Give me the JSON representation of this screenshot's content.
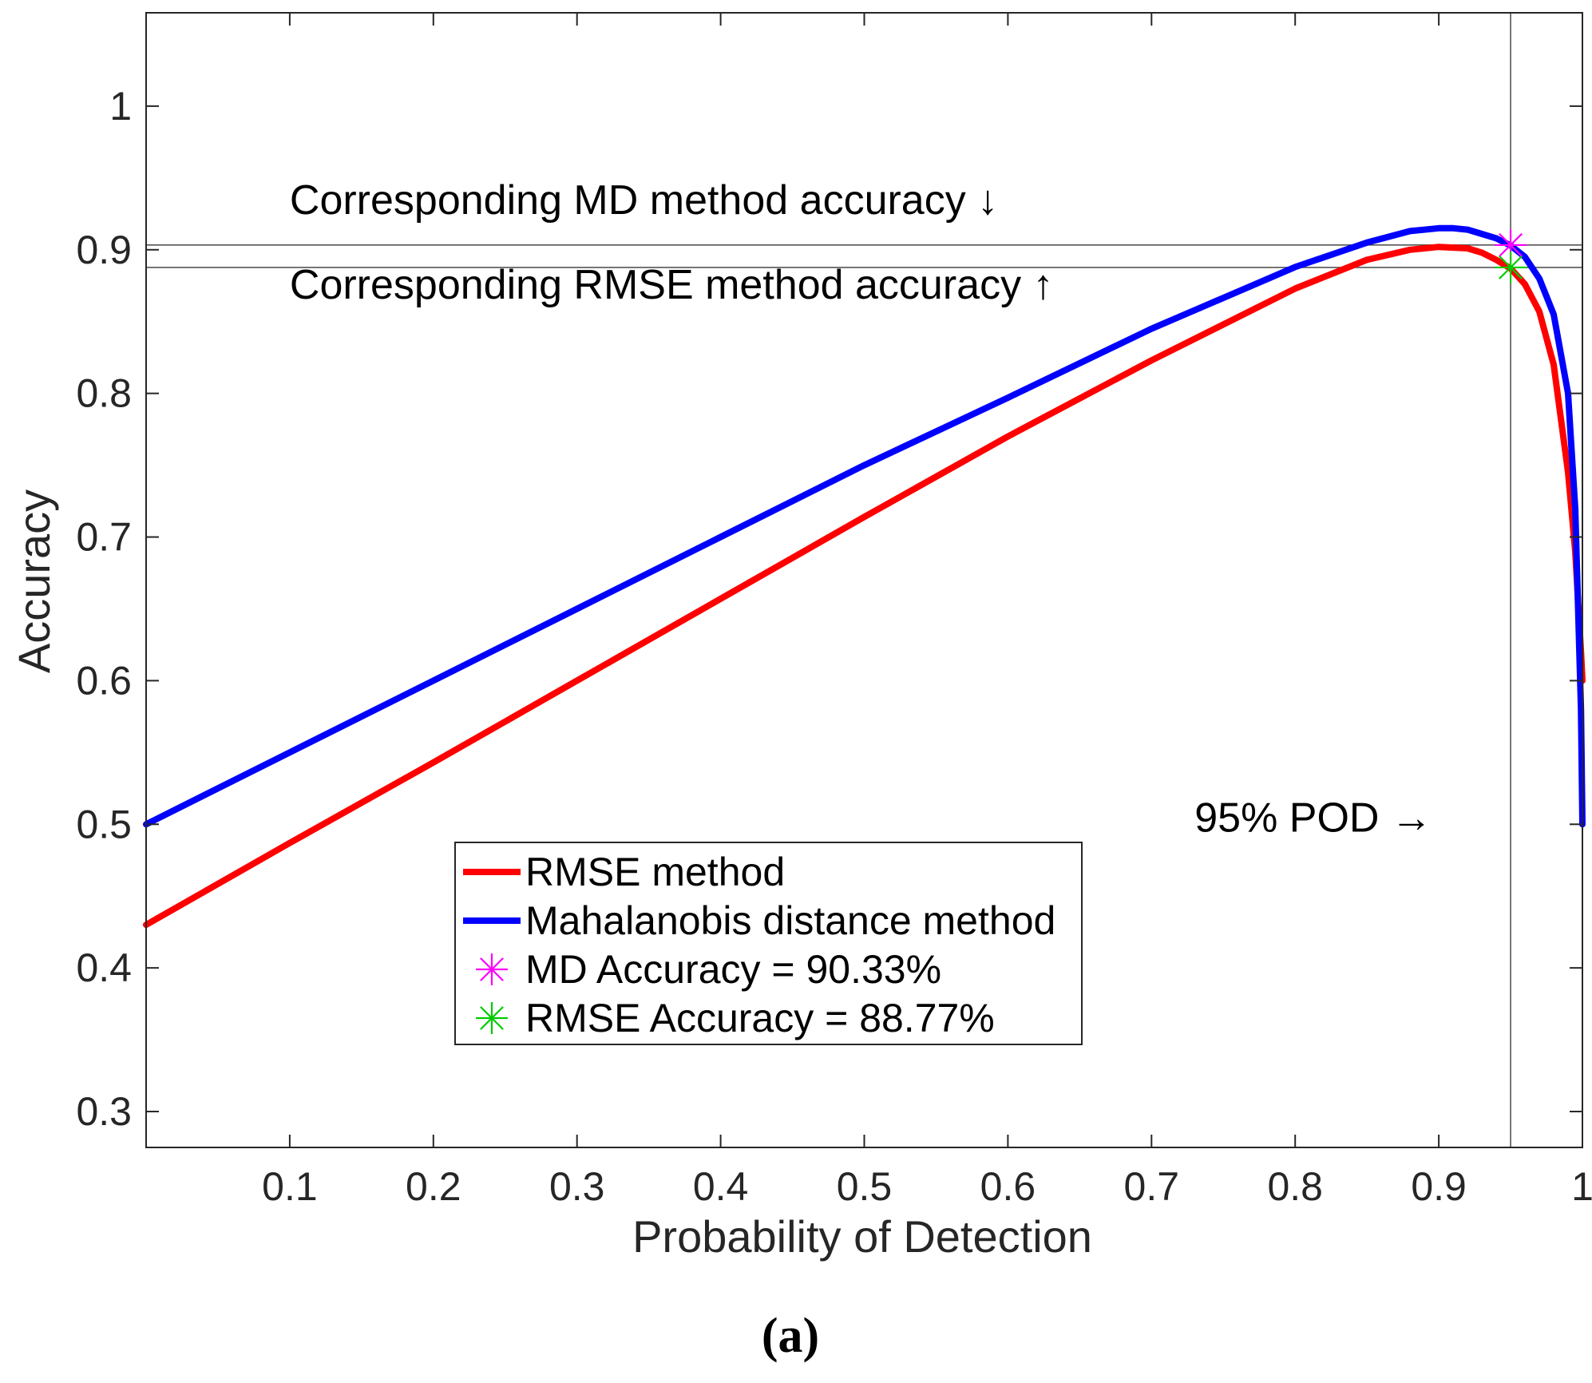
{
  "chart_data": {
    "type": "line",
    "xlabel": "Probability of Detection",
    "ylabel": "Accuracy",
    "xlim": [
      0,
      1
    ],
    "ylim": [
      0.275,
      1.065
    ],
    "xticks": [
      0.1,
      0.2,
      0.3,
      0.4,
      0.5,
      0.6,
      0.7,
      0.8,
      0.9,
      1
    ],
    "xtick_labels": [
      "0.1",
      "0.2",
      "0.3",
      "0.4",
      "0.5",
      "0.6",
      "0.7",
      "0.8",
      "0.9",
      "1"
    ],
    "yticks": [
      0.3,
      0.4,
      0.5,
      0.6,
      0.7,
      0.8,
      0.9,
      1
    ],
    "ytick_labels": [
      "0.3",
      "0.4",
      "0.5",
      "0.6",
      "0.7",
      "0.8",
      "0.9",
      "1"
    ],
    "grid": false,
    "legend_position": "lower-center",
    "series": [
      {
        "name": "RMSE method",
        "color": "#ff0000",
        "x": [
          0,
          0.1,
          0.2,
          0.3,
          0.4,
          0.5,
          0.6,
          0.7,
          0.8,
          0.85,
          0.88,
          0.9,
          0.92,
          0.93,
          0.94,
          0.95,
          0.96,
          0.97,
          0.98,
          0.99,
          0.995,
          0.999,
          1
        ],
        "y": [
          0.43,
          0.487,
          0.543,
          0.6,
          0.657,
          0.714,
          0.77,
          0.823,
          0.873,
          0.893,
          0.9,
          0.902,
          0.901,
          0.898,
          0.893,
          0.887,
          0.876,
          0.857,
          0.82,
          0.745,
          0.69,
          0.62,
          0.6
        ]
      },
      {
        "name": "Mahalanobis distance method",
        "color": "#0000ff",
        "x": [
          0,
          0.1,
          0.2,
          0.3,
          0.4,
          0.5,
          0.6,
          0.7,
          0.8,
          0.85,
          0.88,
          0.9,
          0.91,
          0.92,
          0.93,
          0.94,
          0.95,
          0.96,
          0.97,
          0.98,
          0.99,
          0.995,
          0.999,
          1
        ],
        "y": [
          0.5,
          0.55,
          0.6,
          0.65,
          0.7,
          0.75,
          0.797,
          0.845,
          0.888,
          0.905,
          0.913,
          0.915,
          0.915,
          0.914,
          0.911,
          0.908,
          0.903,
          0.895,
          0.88,
          0.855,
          0.8,
          0.72,
          0.58,
          0.5
        ]
      }
    ],
    "markers": [
      {
        "name": "MD Accuracy = 90.33%",
        "x": 0.95,
        "y": 0.9033,
        "color": "#ff00ff",
        "symbol": "asterisk"
      },
      {
        "name": "RMSE Accuracy = 88.77%",
        "x": 0.95,
        "y": 0.8877,
        "color": "#00cc00",
        "symbol": "asterisk"
      }
    ],
    "reference_lines": [
      {
        "orientation": "horizontal",
        "value": 0.9033,
        "color": "#555555"
      },
      {
        "orientation": "horizontal",
        "value": 0.8877,
        "color": "#555555"
      },
      {
        "orientation": "vertical",
        "value": 0.95,
        "color": "#555555"
      }
    ],
    "annotations": [
      {
        "text": "Corresponding MD method accuracy ↓",
        "x": 0.1,
        "y": 0.925
      },
      {
        "text": "Corresponding RMSE method accuracy ↑",
        "x": 0.1,
        "y": 0.866
      },
      {
        "text": "95% POD →",
        "x": 0.73,
        "y": 0.495
      }
    ],
    "caption": "(a)"
  }
}
